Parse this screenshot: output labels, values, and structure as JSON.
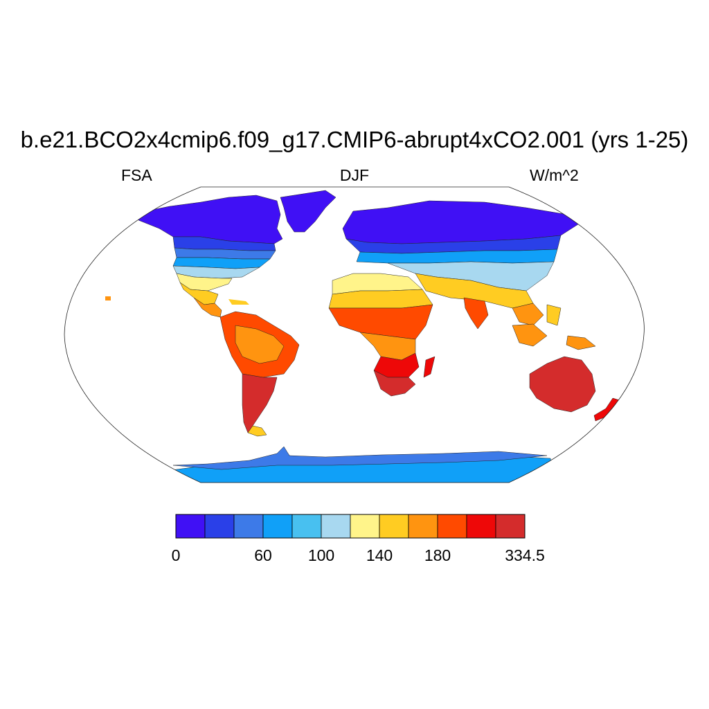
{
  "title": "b.e21.BCO2x4cmip6.f09_g17.CMIP6-abrupt4xCO2.001 (yrs 1-25)",
  "left_label": "FSA",
  "center_label": "DJF",
  "right_label": "W/m^2",
  "colorbar": {
    "colors": [
      "#4010f5",
      "#2a40e8",
      "#3d7ae8",
      "#10a0f8",
      "#48c0f0",
      "#a8d8f0",
      "#fff48a",
      "#ffcc22",
      "#ff9410",
      "#ff4a00",
      "#ee0808",
      "#d42c2c"
    ],
    "labels": [
      {
        "text": "0",
        "box": 0
      },
      {
        "text": "60",
        "box": 3
      },
      {
        "text": "100",
        "box": 5
      },
      {
        "text": "140",
        "box": 7
      },
      {
        "text": "180",
        "box": 9
      },
      {
        "text": "334.5",
        "box": 12
      }
    ]
  }
}
